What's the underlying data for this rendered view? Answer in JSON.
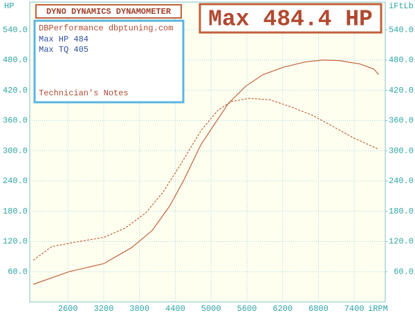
{
  "chart_data": {
    "type": "line",
    "title": "DYNO DYNAMICS DYNAMOMETER",
    "headline": "Max 484.4 HP",
    "info_lines": [
      "DBPerformance dbptuning.com",
      "Max HP 484",
      "Max TQ 405"
    ],
    "notes_label": "Technician's Notes",
    "ylabel": "HP",
    "y2label": "iFtLb",
    "xlabel": "iRPM",
    "xlim": [
      1960,
      7920
    ],
    "xticks": [
      2600,
      3200,
      3800,
      4400,
      5000,
      5600,
      6200,
      6800,
      7400
    ],
    "ylim": [
      0,
      595
    ],
    "yticks": [
      {
        "value": 60,
        "label": "60.0"
      },
      {
        "value": 120,
        "label": "120.0"
      },
      {
        "value": 180,
        "label": "180.0"
      },
      {
        "value": 240,
        "label": "240.0"
      },
      {
        "value": 300,
        "label": "300.0"
      },
      {
        "value": 360,
        "label": "360.0"
      },
      {
        "value": 420,
        "label": "420.0"
      },
      {
        "value": 480,
        "label": "480.0"
      },
      {
        "value": 540,
        "label": "540.0"
      }
    ],
    "y2lim": [
      0,
      595
    ],
    "y2ticks": [
      {
        "value": 60,
        "label": "60.0"
      },
      {
        "value": 120,
        "label": "120.0"
      },
      {
        "value": 180,
        "label": "180.0"
      },
      {
        "value": 240,
        "label": "240.0"
      },
      {
        "value": 300,
        "label": "300.0"
      },
      {
        "value": 360,
        "label": "360.0"
      },
      {
        "value": 420,
        "label": "420.0"
      },
      {
        "value": 480,
        "label": "480.0"
      },
      {
        "value": 540,
        "label": "540.0"
      }
    ],
    "grid": true,
    "series": [
      {
        "color": "#c0603a",
        "dashed": false,
        "x": [
          2020,
          2620,
          3200,
          3670,
          4015,
          4305,
          4540,
          4830,
          5060,
          5290,
          5580,
          5870,
          6220,
          6570,
          6860,
          7150,
          7500,
          7730,
          7810
        ],
        "values": [
          35,
          60,
          76,
          108,
          142,
          190,
          241,
          312,
          353,
          394,
          428,
          451,
          466,
          476,
          480,
          479,
          472,
          462,
          451
        ]
      },
      {
        "color": "#c0603a",
        "dashed": true,
        "axis": "y2",
        "x": [
          2020,
          2330,
          2740,
          3200,
          3550,
          3900,
          4190,
          4480,
          4830,
          5120,
          5350,
          5640,
          5990,
          6340,
          6690,
          7030,
          7380,
          7810
        ],
        "values": [
          83,
          110,
          119,
          128,
          146,
          176,
          217,
          271,
          340,
          381,
          398,
          404,
          401,
          387,
          371,
          349,
          326,
          303
        ]
      }
    ]
  }
}
